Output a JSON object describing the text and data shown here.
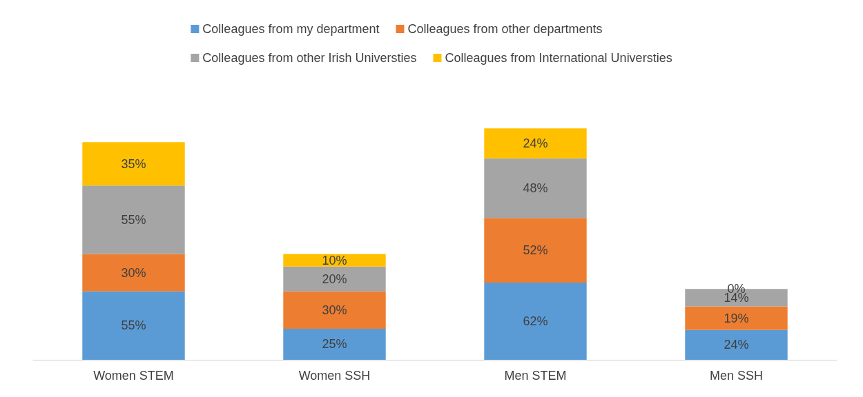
{
  "chart_data": {
    "type": "bar",
    "stacked": true,
    "categories": [
      "Women STEM",
      "Women SSH",
      "Men STEM",
      "Men SSH"
    ],
    "legend": "top",
    "series": [
      {
        "name": "Colleagues from my department",
        "color": "#5b9bd5",
        "values": [
          55,
          25,
          62,
          24
        ],
        "value_labels": [
          "55%",
          "25%",
          "62%",
          "24%"
        ]
      },
      {
        "name": "Colleagues from other departments",
        "color": "#ed7d31",
        "values": [
          30,
          30,
          52,
          19
        ],
        "value_labels": [
          "30%",
          "30%",
          "52%",
          "19%"
        ]
      },
      {
        "name": "Colleagues from other Irish Universties",
        "color": "#a5a5a5",
        "values": [
          55,
          20,
          48,
          14
        ],
        "value_labels": [
          "55%",
          "20%",
          "48%",
          "14%"
        ]
      },
      {
        "name": "Colleagues from International Universties",
        "color": "#ffc000",
        "values": [
          35,
          10,
          24,
          0
        ],
        "value_labels": [
          "35%",
          "10%",
          "24%",
          "0%"
        ]
      }
    ]
  }
}
